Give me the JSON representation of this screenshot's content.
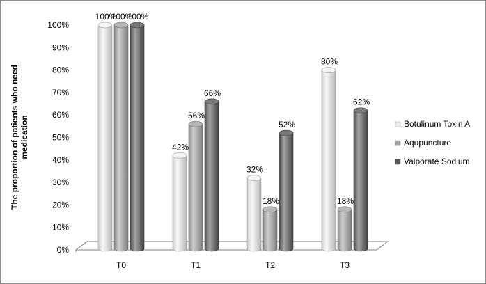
{
  "chart_data": {
    "type": "bar",
    "categories": [
      "T0",
      "T1",
      "T2",
      "T3"
    ],
    "series": [
      {
        "name": "Botulinum Toxin A",
        "values": [
          100,
          42,
          32,
          80
        ],
        "labels": [
          "100%",
          "42%",
          "32%",
          "80%"
        ],
        "color": "#f2f2f2"
      },
      {
        "name": "Aqupuncture",
        "values": [
          100,
          56,
          18,
          18
        ],
        "labels": [
          "100%",
          "56%",
          "18%",
          "18%"
        ],
        "color": "#a6a6a6"
      },
      {
        "name": "Valporate Sodium",
        "values": [
          100,
          66,
          52,
          62
        ],
        "labels": [
          "100%",
          "66%",
          "52%",
          "62%"
        ],
        "color": "#595959"
      }
    ],
    "ylabel": "The proportion of patients who need medication",
    "xlabel": "",
    "ylim": [
      0,
      100
    ],
    "yticks": [
      "0%",
      "10%",
      "20%",
      "30%",
      "40%",
      "50%",
      "60%",
      "70%",
      "80%",
      "90%",
      "100%"
    ],
    "legend_position": "right",
    "grid": false,
    "style": "3d-cylinder"
  }
}
